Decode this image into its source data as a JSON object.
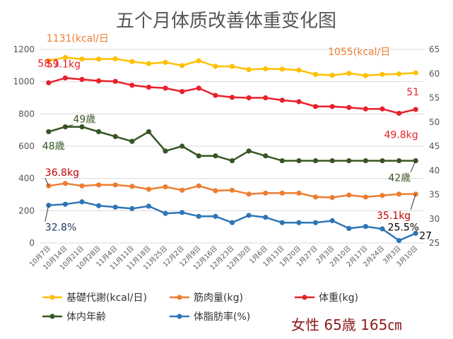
{
  "chart_data": {
    "type": "line",
    "title": "五个月体质改善体重变化图",
    "categories": [
      "10月7日",
      "10月14日",
      "10月21日",
      "10月28日",
      "11月4日",
      "11月11日",
      "11月18日",
      "11月25日",
      "12月2日",
      "12月9日",
      "12月16日",
      "12月23日",
      "12月30日",
      "1月6日",
      "1月13日",
      "1月20日",
      "1月27日",
      "2月3日",
      "2月10日",
      "2月17日",
      "2月24日",
      "3月3日",
      "3月10日"
    ],
    "left_axis": {
      "min": 0,
      "max": 1200,
      "ticks": [
        0,
        200,
        400,
        600,
        800,
        1000,
        1200
      ]
    },
    "right_axis": {
      "min": 25,
      "max": 65,
      "ticks": [
        25,
        30,
        35,
        40,
        45,
        50,
        55,
        60,
        65
      ]
    },
    "grid": true,
    "legend_position": "bottom",
    "note": "女性 65歳 165㎝",
    "series": [
      {
        "name": "基礎代謝(kcal/日)",
        "axis": "left",
        "color": "#ffc000",
        "values": [
          1131,
          1150,
          1140,
          1140,
          1142,
          1125,
          1112,
          1120,
          1100,
          1130,
          1095,
          1095,
          1075,
          1080,
          1078,
          1072,
          1045,
          1040,
          1052,
          1038,
          1045,
          1048,
          1055
        ]
      },
      {
        "name": "筋肉量(kg)",
        "axis": "right",
        "color": "#ed7d31",
        "values": [
          36.8,
          37.3,
          36.8,
          37.0,
          37.0,
          36.7,
          36.1,
          36.6,
          35.9,
          36.8,
          35.8,
          35.9,
          35.1,
          35.3,
          35.3,
          35.3,
          34.5,
          34.4,
          34.9,
          34.5,
          34.8,
          35.1,
          35.1
        ]
      },
      {
        "name": "体重(kg)",
        "axis": "right",
        "color": "#e8212b",
        "values": [
          58.1,
          59.1,
          58.8,
          58.5,
          58.4,
          57.6,
          57.2,
          57.0,
          56.3,
          57.0,
          55.5,
          55.1,
          55.0,
          55.0,
          54.5,
          54.2,
          53.2,
          53.2,
          53.0,
          52.7,
          52.7,
          51.8,
          52.6
        ]
      },
      {
        "name": "体内年齢",
        "axis": "right",
        "color": "#375623",
        "values": [
          48,
          49,
          49,
          48,
          47,
          46,
          48,
          44,
          45,
          43,
          43,
          42,
          44,
          43,
          42,
          42,
          42,
          42,
          42,
          42,
          42,
          42,
          42
        ]
      },
      {
        "name": "体脂肪率(%)",
        "axis": "right",
        "color": "#2e75b6",
        "values": [
          32.8,
          33.0,
          33.5,
          32.7,
          32.4,
          32.1,
          32.6,
          31.1,
          31.3,
          30.5,
          30.5,
          29.2,
          30.7,
          30.3,
          29.2,
          29.2,
          29.2,
          29.6,
          28.0,
          28.4,
          27.9,
          25.5,
          27.0
        ]
      }
    ],
    "annotations": [
      {
        "text": "1131(kcal/日",
        "series": 0,
        "color": "#ed7d31"
      },
      {
        "text": "1055(kcal/日",
        "series": 0,
        "color": "#ed7d31"
      },
      {
        "text": "59.1kg",
        "series": 2,
        "color": "#e8212b"
      },
      {
        "text": "58.1",
        "series": 2,
        "color": "#e8212b"
      },
      {
        "text": "51",
        "series": 2,
        "color": "#e8212b"
      },
      {
        "text": "49.8kg",
        "series": 2,
        "color": "#e8212b"
      },
      {
        "text": "49歳",
        "series": 3,
        "color": "#375623"
      },
      {
        "text": "48歳",
        "series": 3,
        "color": "#375623"
      },
      {
        "text": "42歳",
        "series": 3,
        "color": "#375623"
      },
      {
        "text": "36.8kg",
        "series": 1,
        "color": "#c00000"
      },
      {
        "text": "35.1kg",
        "series": 1,
        "color": "#c00000"
      },
      {
        "text": "32.8%",
        "series": 4,
        "color": "#1f3864"
      },
      {
        "text": "25.5%",
        "series": 4,
        "color": "#000000"
      },
      {
        "text": "27",
        "series": 4,
        "color": "#000000"
      }
    ]
  }
}
